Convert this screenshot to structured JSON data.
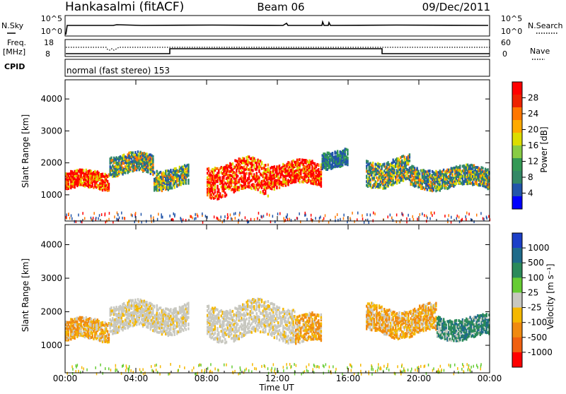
{
  "header": {
    "station": "Hankasalmi (fitACF)",
    "beam": "Beam 06",
    "date": "09/Dec/2011"
  },
  "nsky_panel": {
    "left_label": "N.Sky",
    "right_label": "N.Search",
    "left_ticks": [
      "10^5",
      "10^0"
    ],
    "right_ticks": [
      "10^5",
      "10^0"
    ]
  },
  "freq_panel": {
    "left_label_1": "Freq.",
    "left_label_2": "[MHz]",
    "right_label": "Nave",
    "left_ticks": [
      "18",
      "8"
    ],
    "right_ticks": [
      "60",
      "0"
    ]
  },
  "cpid_panel": {
    "left_label": "CPID",
    "text": "normal (fast stereo) 153"
  },
  "chart_data": [
    {
      "type": "heatmap",
      "name": "power",
      "xlabel": "",
      "ylabel": "Slant Range [km]",
      "ylim": [
        180,
        4600
      ],
      "x_ticks": [
        "00:00",
        "04:00",
        "08:00",
        "12:00",
        "16:00",
        "20:00",
        "00:00"
      ],
      "y_ticks": [
        1000,
        2000,
        3000,
        4000
      ],
      "colorbar": {
        "label": "Power [dB]",
        "ticks": [
          "28",
          "24",
          "20",
          "16",
          "12",
          "8",
          "4"
        ],
        "colors": [
          "#ff0000",
          "#ee2200",
          "#ff7700",
          "#ffaa00",
          "#dddd00",
          "#88cc44",
          "#339955",
          "#338866",
          "#2255aa",
          "#0000ff"
        ]
      },
      "echo_regions": [
        {
          "t0": 0.0,
          "t1": 2.5,
          "r_center": 1500,
          "r_half": 260,
          "level": "strong"
        },
        {
          "t0": 2.5,
          "t1": 5.0,
          "r_center": 2000,
          "r_half": 300,
          "level": "moderate"
        },
        {
          "t0": 5.0,
          "t1": 7.0,
          "r_center": 1600,
          "r_half": 300,
          "level": "moderate"
        },
        {
          "t0": 8.0,
          "t1": 11.5,
          "r_center": 1600,
          "r_half": 500,
          "level": "strong"
        },
        {
          "t0": 11.5,
          "t1": 14.5,
          "r_center": 1700,
          "r_half": 350,
          "level": "strong"
        },
        {
          "t0": 14.5,
          "t1": 16.0,
          "r_center": 2200,
          "r_half": 250,
          "level": "weak"
        },
        {
          "t0": 17.0,
          "t1": 19.5,
          "r_center": 1800,
          "r_half": 400,
          "level": "moderate"
        },
        {
          "t0": 19.5,
          "t1": 24.0,
          "r_center": 1600,
          "r_half": 300,
          "level": "moderate"
        }
      ]
    },
    {
      "type": "heatmap",
      "name": "velocity",
      "xlabel": "Time UT",
      "ylabel": "Slant Range [km]",
      "ylim": [
        180,
        4600
      ],
      "x_ticks": [
        "00:00",
        "04:00",
        "08:00",
        "12:00",
        "16:00",
        "20:00",
        "00:00"
      ],
      "y_ticks": [
        1000,
        2000,
        3000,
        4000
      ],
      "colorbar": {
        "label": "Velocity [m s⁻¹]",
        "ticks": [
          "1000",
          "500",
          "100",
          "25",
          "-25",
          "-100",
          "-500",
          "-1000"
        ],
        "colors": [
          "#1c3fc8",
          "#1f6b8a",
          "#2b8a5a",
          "#66cc33",
          "#c8c8c0",
          "#f5b800",
          "#f08a10",
          "#f06010",
          "#ff0000"
        ]
      },
      "echo_regions": [
        {
          "t0": 0.0,
          "t1": 2.5,
          "r_center": 1500,
          "r_half": 300,
          "level": "negative"
        },
        {
          "t0": 2.5,
          "t1": 7.0,
          "r_center": 1900,
          "r_half": 400,
          "level": "near-zero"
        },
        {
          "t0": 8.0,
          "t1": 13.0,
          "r_center": 1800,
          "r_half": 500,
          "level": "near-zero"
        },
        {
          "t0": 13.0,
          "t1": 14.5,
          "r_center": 1500,
          "r_half": 400,
          "level": "negative"
        },
        {
          "t0": 17.0,
          "t1": 21.0,
          "r_center": 1800,
          "r_half": 400,
          "level": "negative"
        },
        {
          "t0": 21.0,
          "t1": 24.0,
          "r_center": 1600,
          "r_half": 300,
          "level": "positive"
        }
      ]
    }
  ]
}
